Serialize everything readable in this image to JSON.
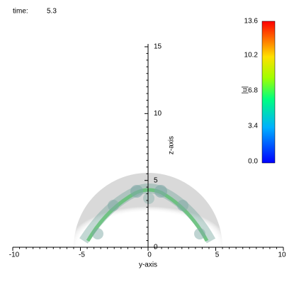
{
  "header": {
    "time_label": "time:",
    "time_value": "5.3"
  },
  "axes": {
    "x_label": "y-axis",
    "y_label": "z-axis",
    "xticks": [
      -10,
      -5,
      0,
      5,
      10
    ],
    "yticks": [
      0,
      5,
      10,
      15
    ]
  },
  "colorbar": {
    "label": "|u|",
    "ticks": [
      "0.0",
      "3.4",
      "6.8",
      "10.2",
      "13.6"
    ]
  }
}
